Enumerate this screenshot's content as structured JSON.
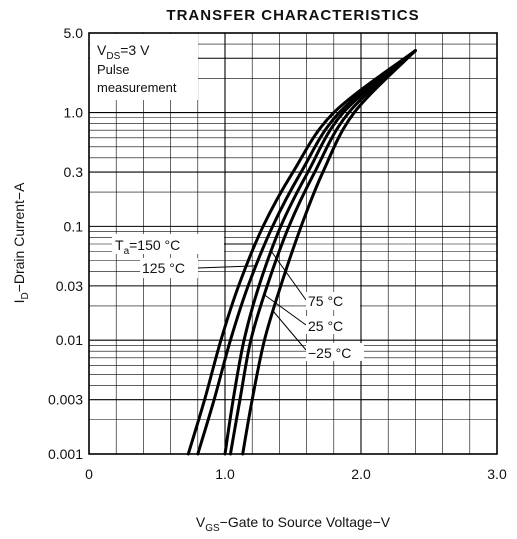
{
  "chart_data": {
    "type": "line",
    "title": "TRANSFER CHARACTERISTICS",
    "xlabel": {
      "main": "V",
      "sub": "GS",
      "rest": "−Gate to Source Voltage−V"
    },
    "ylabel": {
      "main": "I",
      "sub": "D",
      "rest": "−Drain Current−A"
    },
    "x_scale": "linear",
    "y_scale": "log",
    "xlim": [
      0,
      3.0
    ],
    "ylim": [
      0.001,
      5.0
    ],
    "x_ticks": [
      "0",
      "1.0",
      "2.0",
      "3.0"
    ],
    "y_ticks": [
      "5.0",
      "1.0",
      "0.3",
      "0.1",
      "0.03",
      "0.01",
      "0.003",
      "0.001"
    ],
    "grid": true,
    "conditions": {
      "line1_main": "V",
      "line1_sub": "DS",
      "line1_rest": "=3 V",
      "line2": "Pulse",
      "line3": "measurement"
    },
    "series": [
      {
        "name": "Ta = 150 °C",
        "points": [
          [
            0.73,
            0.001
          ],
          [
            0.85,
            0.003
          ],
          [
            0.97,
            0.01
          ],
          [
            1.1,
            0.03
          ],
          [
            1.28,
            0.1
          ],
          [
            1.5,
            0.3
          ],
          [
            1.8,
            1.0
          ],
          [
            2.4,
            3.5
          ]
        ]
      },
      {
        "name": "125 °C",
        "points": [
          [
            0.8,
            0.001
          ],
          [
            0.92,
            0.003
          ],
          [
            1.04,
            0.01
          ],
          [
            1.17,
            0.03
          ],
          [
            1.35,
            0.1
          ],
          [
            1.56,
            0.3
          ],
          [
            1.84,
            1.0
          ],
          [
            2.4,
            3.5
          ]
        ]
      },
      {
        "name": "75 °C",
        "points": [
          [
            1.0,
            0.001
          ],
          [
            1.06,
            0.003
          ],
          [
            1.14,
            0.01
          ],
          [
            1.25,
            0.03
          ],
          [
            1.41,
            0.1
          ],
          [
            1.61,
            0.3
          ],
          [
            1.87,
            1.0
          ],
          [
            2.4,
            3.5
          ]
        ]
      },
      {
        "name": "25 °C",
        "points": [
          [
            1.04,
            0.001
          ],
          [
            1.11,
            0.003
          ],
          [
            1.19,
            0.01
          ],
          [
            1.31,
            0.03
          ],
          [
            1.47,
            0.1
          ],
          [
            1.66,
            0.3
          ],
          [
            1.91,
            1.0
          ],
          [
            2.4,
            3.5
          ]
        ]
      },
      {
        "name": "−25 °C",
        "points": [
          [
            1.13,
            0.001
          ],
          [
            1.2,
            0.003
          ],
          [
            1.29,
            0.01
          ],
          [
            1.41,
            0.03
          ],
          [
            1.56,
            0.1
          ],
          [
            1.72,
            0.3
          ],
          [
            1.95,
            1.0
          ],
          [
            2.4,
            3.5
          ]
        ]
      }
    ],
    "labels": {
      "ta_main": "T",
      "ta_sub": "a",
      "ta_rest": "=150 °C",
      "t125": "125 °C",
      "t75": "75 °C",
      "t25": "25 °C",
      "tm25": "−25 °C"
    }
  }
}
